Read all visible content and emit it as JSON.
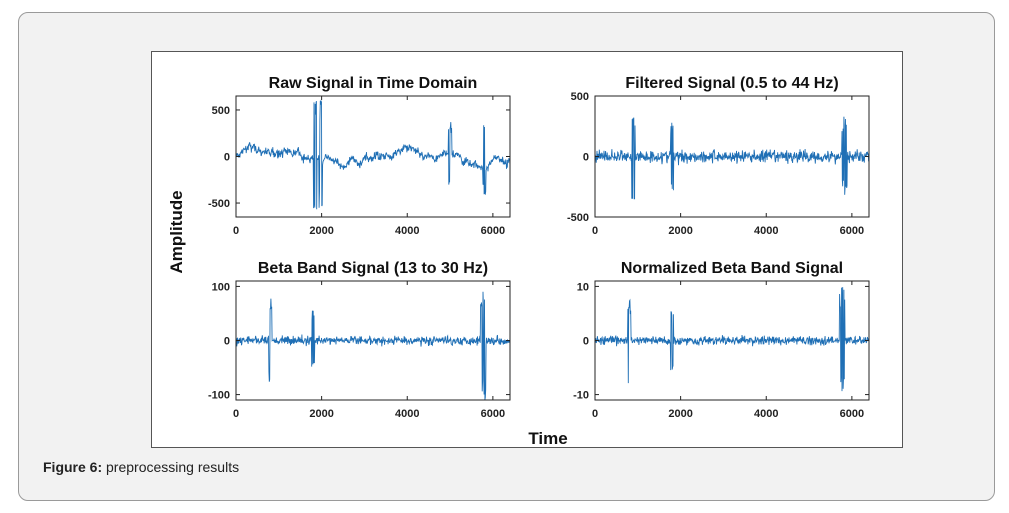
{
  "caption": {
    "label": "Figure 6:",
    "text": "preprocessing results"
  },
  "figure": {
    "ylabel": "Amplitude",
    "xlabel": "Time"
  },
  "colors": {
    "signal": "#1f6fb5",
    "axis": "#222222"
  },
  "chart_data": [
    {
      "type": "line",
      "title": "Raw Signal in Time Domain",
      "xlim": [
        0,
        6400
      ],
      "ylim": [
        -650,
        650
      ],
      "xticks": [
        0,
        2000,
        4000,
        6000
      ],
      "yticks": [
        500,
        0,
        -500
      ],
      "ytick_labels": [
        "500",
        "0",
        "-500"
      ],
      "series": [
        {
          "amplitude_range": [
            -620,
            600
          ],
          "peaks": [
            {
              "x": 1850,
              "y": 600
            },
            {
              "x": 1980,
              "y": -620
            },
            {
              "x": 5800,
              "y": -420
            },
            {
              "x": 5000,
              "y": 380
            }
          ]
        }
      ]
    },
    {
      "type": "line",
      "title": "Filtered Signal (0.5 to 44 Hz)",
      "xlim": [
        0,
        6400
      ],
      "ylim": [
        -500,
        500
      ],
      "xticks": [
        0,
        2000,
        4000,
        6000
      ],
      "yticks": [
        500,
        0,
        -500
      ],
      "ytick_labels": [
        "500",
        "0",
        "-500"
      ],
      "series": [
        {
          "amplitude_range": [
            -350,
            420
          ],
          "peaks": [
            {
              "x": 900,
              "y": 420
            },
            {
              "x": 1800,
              "y": 300
            },
            {
              "x": 5800,
              "y": 320
            },
            {
              "x": 5850,
              "y": -330
            }
          ]
        }
      ]
    },
    {
      "type": "line",
      "title": "Beta Band Signal (13 to 30 Hz)",
      "xlim": [
        0,
        6400
      ],
      "ylim": [
        -110,
        110
      ],
      "xticks": [
        0,
        2000,
        4000,
        6000
      ],
      "yticks": [
        100,
        0,
        -100
      ],
      "ytick_labels": [
        "100",
        "0",
        "-100"
      ],
      "series": [
        {
          "amplitude_range": [
            -110,
            110
          ],
          "peaks": [
            {
              "x": 800,
              "y": 85
            },
            {
              "x": 1800,
              "y": 60
            },
            {
              "x": 5750,
              "y": 105
            },
            {
              "x": 5800,
              "y": -110
            }
          ]
        }
      ]
    },
    {
      "type": "line",
      "title": "Normalized Beta Band Signal",
      "xlim": [
        0,
        6400
      ],
      "ylim": [
        -11,
        11
      ],
      "xticks": [
        0,
        2000,
        4000,
        6000
      ],
      "yticks": [
        10,
        0,
        -10
      ],
      "ytick_labels": [
        "10",
        "0",
        "-10"
      ],
      "series": [
        {
          "amplitude_range": [
            -10,
            10
          ],
          "peaks": [
            {
              "x": 800,
              "y": 8
            },
            {
              "x": 1800,
              "y": 6
            },
            {
              "x": 5750,
              "y": 10
            },
            {
              "x": 5800,
              "y": -10
            }
          ]
        }
      ]
    }
  ]
}
